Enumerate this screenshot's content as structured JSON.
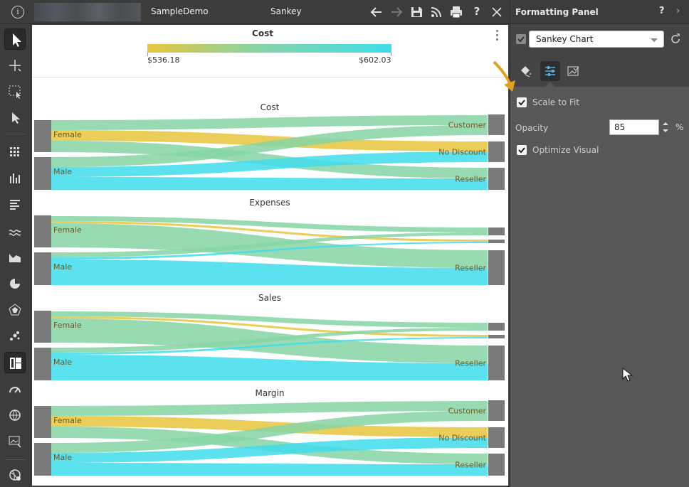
{
  "app": {
    "name": "SampleDemo",
    "view": "Sankey"
  },
  "toolbar": {
    "icons": [
      "info-icon",
      "back-icon",
      "forward-icon",
      "save-icon",
      "rss-icon",
      "print-icon",
      "help-icon",
      "close-icon"
    ]
  },
  "left_tools": [
    "pointer-icon",
    "crosshair-icon",
    "marquee-select-icon",
    "cursor-select-icon",
    "grid-icon",
    "bar-chart-icon",
    "horizontal-bar-icon",
    "line-chart-icon",
    "area-chart-icon",
    "pie-chart-icon",
    "radar-chart-icon",
    "scatter-icon",
    "sankey-icon",
    "gauge-icon",
    "globe-icon",
    "image-chart-icon",
    "settings-globe-icon"
  ],
  "legend": {
    "title": "Cost",
    "min_label": "$536.18",
    "max_label": "$602.03",
    "min_color": "#e8c53c",
    "max_color": "#3fdcec"
  },
  "chart_data": {
    "type": "sankey",
    "panels": [
      {
        "title": "Cost",
        "sources": [
          "Female",
          "Male"
        ],
        "targets": [
          "Customer",
          "No Discount",
          "Reseller"
        ],
        "links": [
          {
            "source": "Female",
            "target": "Customer",
            "color": "#86d5a4"
          },
          {
            "source": "Female",
            "target": "No Discount",
            "color": "#e8c53c"
          },
          {
            "source": "Female",
            "target": "Reseller",
            "color": "#86d5a4"
          },
          {
            "source": "Male",
            "target": "Customer",
            "color": "#86d5a4"
          },
          {
            "source": "Male",
            "target": "No Discount",
            "color": "#3fdcec"
          },
          {
            "source": "Male",
            "target": "Reseller",
            "color": "#3fdcec"
          }
        ]
      },
      {
        "title": "Expenses",
        "sources": [
          "Female",
          "Male"
        ],
        "targets": [
          "",
          "",
          "Reseller"
        ],
        "links": [
          {
            "source": "Female",
            "target": "1",
            "color": "#86d5a4"
          },
          {
            "source": "Female",
            "target": "2",
            "color": "#e8c53c"
          },
          {
            "source": "Female",
            "target": "Reseller",
            "color": "#86d5a4"
          },
          {
            "source": "Male",
            "target": "1",
            "color": "#86d5a4"
          },
          {
            "source": "Male",
            "target": "2",
            "color": "#3fdcec"
          },
          {
            "source": "Male",
            "target": "Reseller",
            "color": "#3fdcec"
          }
        ]
      },
      {
        "title": "Sales",
        "sources": [
          "Female",
          "Male"
        ],
        "targets": [
          "",
          "",
          "Reseller"
        ],
        "links": [
          {
            "source": "Female",
            "target": "1",
            "color": "#86d5a4"
          },
          {
            "source": "Female",
            "target": "2",
            "color": "#e8c53c"
          },
          {
            "source": "Female",
            "target": "Reseller",
            "color": "#86d5a4"
          },
          {
            "source": "Male",
            "target": "1",
            "color": "#86d5a4"
          },
          {
            "source": "Male",
            "target": "2",
            "color": "#3fdcec"
          },
          {
            "source": "Male",
            "target": "Reseller",
            "color": "#3fdcec"
          }
        ]
      },
      {
        "title": "Margin",
        "sources": [
          "Female",
          "Male"
        ],
        "targets": [
          "Customer",
          "No Discount",
          "Reseller"
        ],
        "links": [
          {
            "source": "Female",
            "target": "Customer",
            "color": "#86d5a4"
          },
          {
            "source": "Female",
            "target": "No Discount",
            "color": "#e8c53c"
          },
          {
            "source": "Female",
            "target": "Reseller",
            "color": "#86d5a4"
          },
          {
            "source": "Male",
            "target": "Customer",
            "color": "#86d5a4"
          },
          {
            "source": "Male",
            "target": "No Discount",
            "color": "#3fdcec"
          },
          {
            "source": "Male",
            "target": "Reseller",
            "color": "#3fdcec"
          }
        ]
      }
    ]
  },
  "panel": {
    "title": "Formatting Panel",
    "help": "?",
    "next": "›",
    "visual_select": "Sankey Chart",
    "scale_to_fit": {
      "label": "Scale to Fit",
      "checked": true
    },
    "opacity": {
      "label": "Opacity",
      "value": "85",
      "unit": "%"
    },
    "optimize_visual": {
      "label": "Optimize Visual",
      "checked": true
    }
  }
}
